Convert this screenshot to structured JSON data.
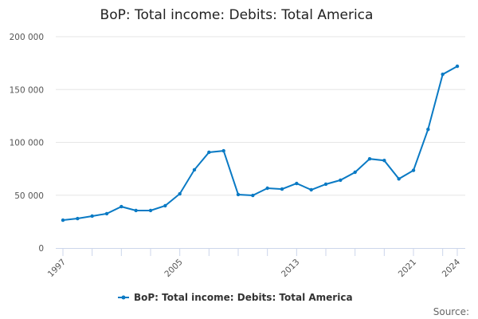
{
  "chart_data": {
    "type": "line",
    "title": "BoP: Total income: Debits: Total America",
    "xlabel": "",
    "ylabel": "",
    "x": [
      1997,
      1998,
      1999,
      2000,
      2001,
      2002,
      2003,
      2004,
      2005,
      2006,
      2007,
      2008,
      2009,
      2010,
      2011,
      2012,
      2013,
      2014,
      2015,
      2016,
      2017,
      2018,
      2019,
      2020,
      2021,
      2022,
      2023,
      2024
    ],
    "series": [
      {
        "name": "BoP: Total income: Debits: Total America",
        "values": [
          26400,
          27900,
          30200,
          32500,
          39200,
          35500,
          35500,
          40000,
          51300,
          74000,
          90600,
          92000,
          50600,
          49800,
          56600,
          55800,
          61100,
          55100,
          60400,
          64200,
          71700,
          84400,
          82900,
          65400,
          73500,
          112300,
          164400,
          172000
        ]
      }
    ],
    "ylim": [
      0,
      200000
    ],
    "yticks": [
      0,
      50000,
      100000,
      150000,
      200000
    ],
    "ytick_labels": [
      "0",
      "50 000",
      "100 000",
      "150 000",
      "200 000"
    ],
    "xtick_labels": [
      "1997",
      "2005",
      "2013",
      "2021",
      "2024"
    ],
    "grid": true,
    "legend": "bottom",
    "color": "#0a7ac4",
    "source_label": "Source:"
  }
}
